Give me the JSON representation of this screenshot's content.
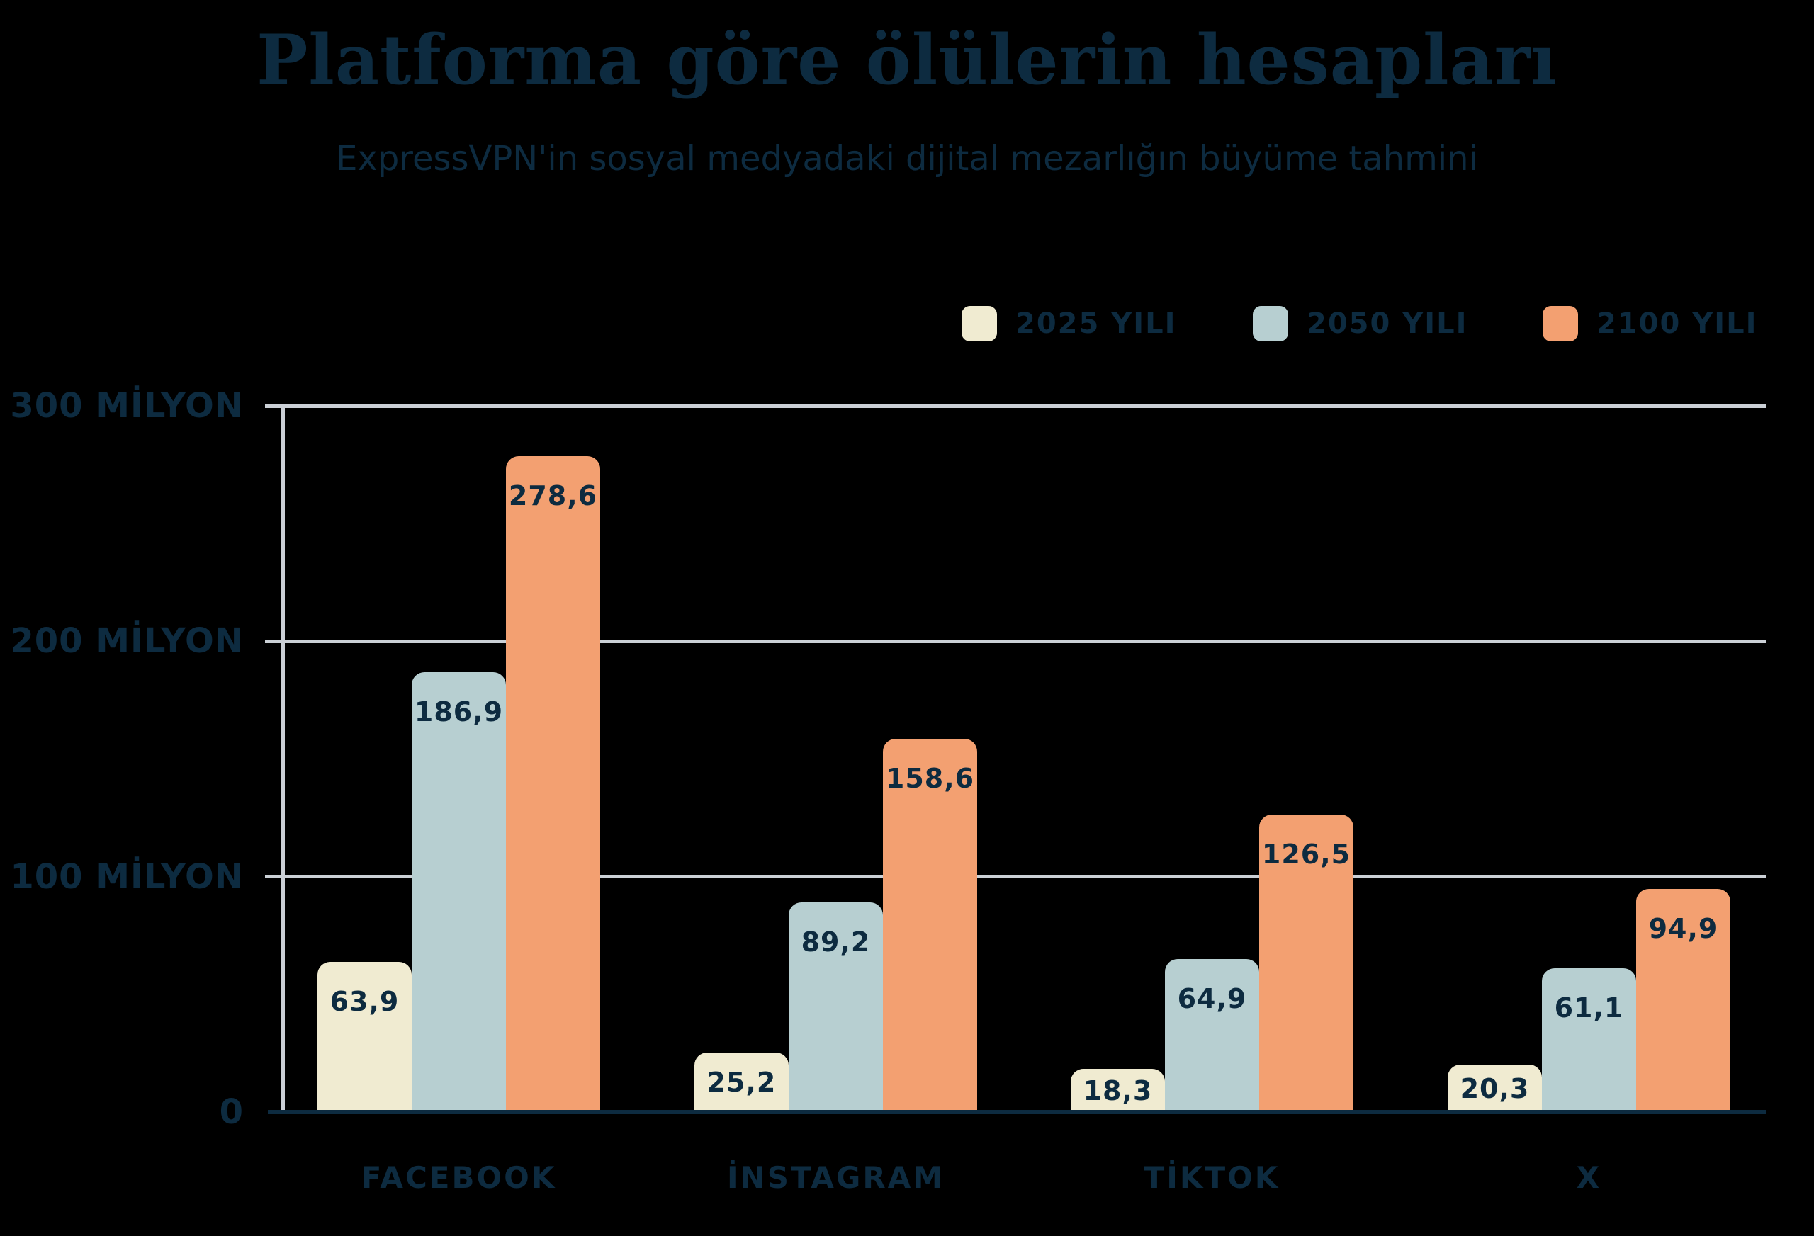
{
  "title": "Platforma göre ölülerin hesapları",
  "subtitle": "ExpressVPN'in sosyal medyadaki dijital mezarlığın büyüme tahmini",
  "colors": {
    "background": "#000000",
    "text_navy": "#0d2b40",
    "gridline_gray": "#cbd0d6",
    "series_2025": "#f0ebd1",
    "series_2050": "#b7cfd1",
    "series_2100": "#f3a071"
  },
  "legend": [
    {
      "label": "2025 YILI",
      "color": "#f0ebd1"
    },
    {
      "label": "2050 YILI",
      "color": "#b7cfd1"
    },
    {
      "label": "2100 YILI",
      "color": "#f3a071"
    }
  ],
  "chart_data": {
    "type": "bar",
    "title": "Platforma göre ölülerin hesapları",
    "subtitle": "ExpressVPN'in sosyal medyadaki dijital mezarlığın büyüme tahmini",
    "categories": [
      "FACEBOOK",
      "İNSTAGRAM",
      "TİKTOK",
      "X"
    ],
    "series": [
      {
        "name": "2025 YILI",
        "color": "#f0ebd1",
        "values": [
          63.9,
          25.2,
          18.3,
          20.3
        ],
        "labels": [
          "63,9",
          "25,2",
          "18,3",
          "20,3"
        ]
      },
      {
        "name": "2050 YILI",
        "color": "#b7cfd1",
        "values": [
          186.9,
          89.2,
          64.9,
          61.1
        ],
        "labels": [
          "186,9",
          "89,2",
          "64,9",
          "61,1"
        ]
      },
      {
        "name": "2100 YILI",
        "color": "#f3a071",
        "values": [
          278.6,
          158.6,
          126.5,
          94.9
        ],
        "labels": [
          "278,6",
          "158,6",
          "126,5",
          "94,9"
        ]
      }
    ],
    "yticks": [
      {
        "value": 300,
        "label": "300 MİLYON"
      },
      {
        "value": 200,
        "label": "200 MİLYON"
      },
      {
        "value": 100,
        "label": "100 MİLYON"
      },
      {
        "value": 0,
        "label": "0"
      }
    ],
    "ylim": [
      0,
      300
    ],
    "xlabel": "",
    "ylabel": "",
    "grid": true,
    "legend_position": "top-right"
  }
}
